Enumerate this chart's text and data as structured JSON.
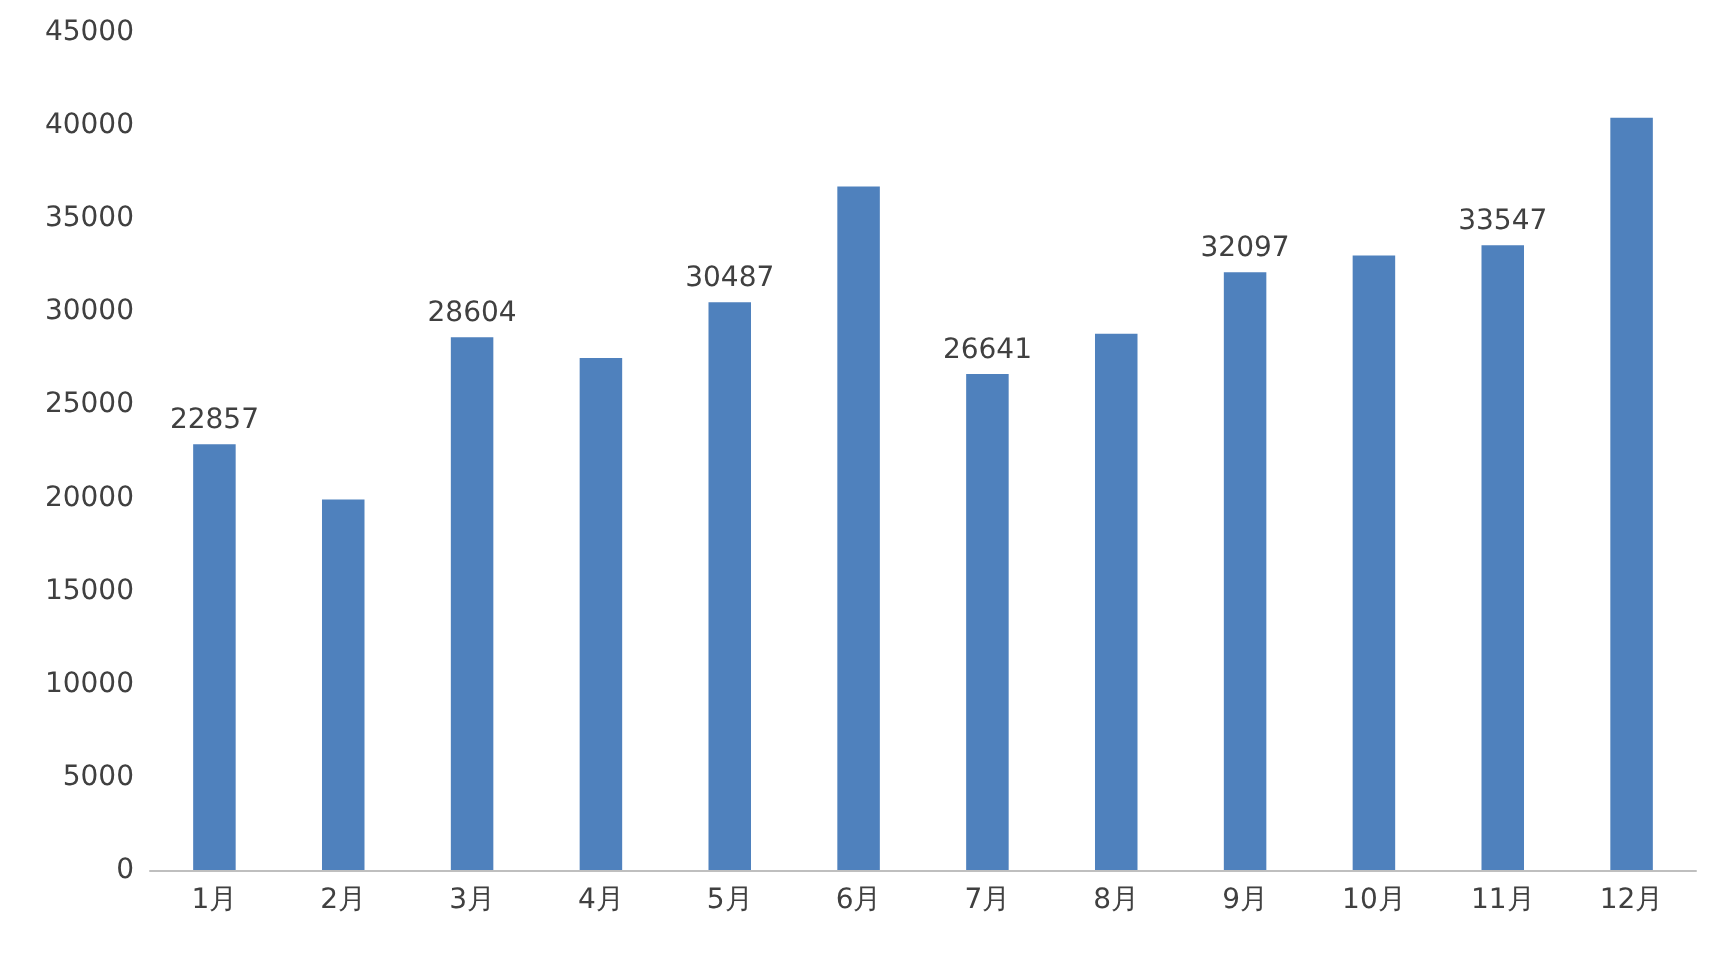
{
  "chart_data": {
    "type": "bar",
    "categories": [
      "1月",
      "2月",
      "3月",
      "4月",
      "5月",
      "6月",
      "7月",
      "8月",
      "9月",
      "10月",
      "11月",
      "12月"
    ],
    "values": [
      22857,
      19900,
      28604,
      27500,
      30487,
      36700,
      26641,
      28800,
      32097,
      33000,
      33547,
      40400
    ],
    "value_labels": [
      "22857",
      null,
      "28604",
      null,
      "30487",
      null,
      "26641",
      null,
      "32097",
      null,
      "33547",
      null
    ],
    "color": "#4f81bd",
    "ylim": [
      0,
      45000
    ],
    "yticks": [
      0,
      5000,
      10000,
      15000,
      20000,
      25000,
      30000,
      35000,
      40000,
      45000
    ],
    "grid": false
  }
}
